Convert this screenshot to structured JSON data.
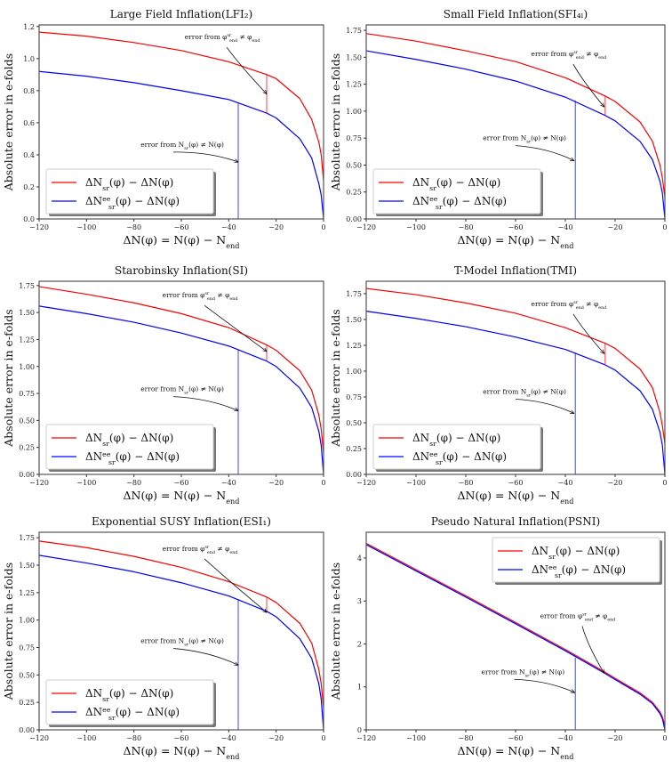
{
  "colors": {
    "red": "#ff0000",
    "blue": "#0000ff",
    "axis": "#555555"
  },
  "chart_data": [
    {
      "type": "line",
      "title": "Large Field Inflation(LFI₂)",
      "xlabel": "ΔN(φ) = N(φ) − N{_end}",
      "ylabel": "Absolute error in e-folds",
      "xlim": [
        -120,
        0
      ],
      "ylim": [
        0,
        1.21
      ],
      "xticks": [
        -120,
        -100,
        -80,
        -60,
        -40,
        -20,
        0
      ],
      "yticks": [
        0.0,
        0.2,
        0.4,
        0.6,
        0.8,
        1.0,
        1.2
      ],
      "ytick_decimals": 1,
      "grid": false,
      "legend_placement": "lower-left",
      "x": [
        -120,
        -100,
        -80,
        -60,
        -40,
        -24,
        -20,
        -10,
        -5,
        -2,
        -1,
        0
      ],
      "series": [
        {
          "name": "ΔN{_sr}(φ) − ΔN(φ)",
          "color": "#ff0000",
          "values": [
            1.165,
            1.14,
            1.1,
            1.05,
            0.98,
            0.9,
            0.875,
            0.75,
            0.62,
            0.48,
            0.4,
            0.24
          ]
        },
        {
          "name": "ΔN{^ee}{_sr}(φ) − ΔN(φ)",
          "color": "#0000ff",
          "values": [
            0.92,
            0.89,
            0.85,
            0.8,
            0.745,
            0.66,
            0.63,
            0.5,
            0.38,
            0.22,
            0.15,
            0.0
          ]
        }
      ],
      "vlines": [
        {
          "x": -24,
          "y0": 0.655,
          "y1": 0.9,
          "color": "#ff0000"
        },
        {
          "x": -36,
          "y0": 0,
          "y1": 0.72,
          "color": "#0000ff"
        }
      ],
      "annotations": [
        {
          "text": "error from φ{^sr}{_end} ≠ φ{_end}",
          "xytext": [
            -42.7,
            1.12
          ],
          "xy": [
            -24,
            0.78
          ]
        },
        {
          "text": "error from N{_sr}(φ) ≠ N(φ)",
          "xytext": [
            -59.6,
            0.45
          ],
          "xy": [
            -36,
            0.355
          ]
        }
      ]
    },
    {
      "type": "line",
      "title": "Small Field Inflation(SFI₄ₗ)",
      "xlabel": "ΔN(φ) = N(φ) − N{_end}",
      "ylabel": "Absolute error in e-folds",
      "xlim": [
        -120,
        0
      ],
      "ylim": [
        0,
        1.8
      ],
      "xticks": [
        -120,
        -100,
        -80,
        -60,
        -40,
        -20,
        0
      ],
      "yticks": [
        0.0,
        0.25,
        0.5,
        0.75,
        1.0,
        1.25,
        1.5,
        1.75
      ],
      "ytick_decimals": 2,
      "grid": false,
      "legend_placement": "lower-left",
      "x": [
        -120,
        -100,
        -80,
        -60,
        -40,
        -24,
        -20,
        -10,
        -5,
        -2,
        -1,
        0
      ],
      "series": [
        {
          "name": "ΔN{_sr}(φ) − ΔN(φ)",
          "color": "#ff0000",
          "values": [
            1.72,
            1.65,
            1.56,
            1.46,
            1.31,
            1.14,
            1.09,
            0.9,
            0.72,
            0.5,
            0.38,
            0.2
          ]
        },
        {
          "name": "ΔN{^ee}{_sr}(φ) − ΔN(φ)",
          "color": "#0000ff",
          "values": [
            1.56,
            1.48,
            1.39,
            1.28,
            1.13,
            0.96,
            0.91,
            0.72,
            0.55,
            0.35,
            0.24,
            0.0
          ]
        }
      ],
      "vlines": [
        {
          "x": -24,
          "y0": 0.96,
          "y1": 1.14,
          "color": "#ff0000"
        },
        {
          "x": -36,
          "y0": 0,
          "y1": 1.1,
          "color": "#0000ff"
        }
      ],
      "annotations": [
        {
          "text": "error from φ{^sr}{_end} ≠ φ{_end}",
          "xytext": [
            -38.6,
            1.51
          ],
          "xy": [
            -24.4,
            1.04
          ]
        },
        {
          "text": "error from N{_sr}(φ) ≠ N(φ)",
          "xytext": [
            -56.4,
            0.73
          ],
          "xy": [
            -36.5,
            0.54
          ]
        }
      ]
    },
    {
      "type": "line",
      "title": "Starobinsky Inflation(SI)",
      "xlabel": "ΔN(φ) = N(φ) − N{_end}",
      "ylabel": "Absolute error in e-folds",
      "xlim": [
        -120,
        0
      ],
      "ylim": [
        0,
        1.79
      ],
      "xticks": [
        -120,
        -100,
        -80,
        -60,
        -40,
        -20,
        0
      ],
      "yticks": [
        0.0,
        0.25,
        0.5,
        0.75,
        1.0,
        1.25,
        1.5,
        1.75
      ],
      "ytick_decimals": 2,
      "grid": false,
      "legend_placement": "lower-left",
      "x": [
        -120,
        -100,
        -80,
        -60,
        -40,
        -24,
        -20,
        -10,
        -5,
        -2,
        -1,
        0
      ],
      "series": [
        {
          "name": "ΔN{_sr}(φ) − ΔN(φ)",
          "color": "#ff0000",
          "values": [
            1.74,
            1.67,
            1.59,
            1.49,
            1.36,
            1.2,
            1.15,
            0.96,
            0.78,
            0.55,
            0.42,
            0.2
          ]
        },
        {
          "name": "ΔN{^ee}{_sr}(φ) − ΔN(φ)",
          "color": "#0000ff",
          "values": [
            1.56,
            1.49,
            1.41,
            1.31,
            1.19,
            1.05,
            1.0,
            0.8,
            0.62,
            0.4,
            0.27,
            0.0
          ]
        }
      ],
      "vlines": [
        {
          "x": -24,
          "y0": 1.05,
          "y1": 1.2,
          "color": "#ff0000"
        },
        {
          "x": -36,
          "y0": 0,
          "y1": 1.16,
          "color": "#0000ff"
        }
      ],
      "annotations": [
        {
          "text": "error from φ{^sr}{_end} ≠ φ{_end}",
          "xytext": [
            -52.1,
            1.64
          ],
          "xy": [
            -24,
            1.14
          ]
        },
        {
          "text": "error from N{_sr}(φ) ≠ N(φ)",
          "xytext": [
            -59.6,
            0.77
          ],
          "xy": [
            -36,
            0.59
          ]
        }
      ]
    },
    {
      "type": "line",
      "title": "T-Model Inflation(TMI)",
      "xlabel": "ΔN(φ) = N(φ) − N{_end}",
      "ylabel": "Absolute error in e-folds",
      "xlim": [
        -120,
        0
      ],
      "ylim": [
        0,
        1.87
      ],
      "xticks": [
        -120,
        -100,
        -80,
        -60,
        -40,
        -20,
        0
      ],
      "yticks": [
        0.0,
        0.25,
        0.5,
        0.75,
        1.0,
        1.25,
        1.5,
        1.75
      ],
      "ytick_decimals": 2,
      "grid": false,
      "legend_placement": "lower-left",
      "x": [
        -120,
        -100,
        -80,
        -60,
        -40,
        -24,
        -20,
        -10,
        -5,
        -2,
        -1,
        0
      ],
      "series": [
        {
          "name": "ΔN{_sr}(φ) − ΔN(φ)",
          "color": "#ff0000",
          "values": [
            1.8,
            1.74,
            1.66,
            1.56,
            1.42,
            1.27,
            1.22,
            1.02,
            0.84,
            0.6,
            0.47,
            0.3
          ]
        },
        {
          "name": "ΔN{^ee}{_sr}(φ) − ΔN(φ)",
          "color": "#0000ff",
          "values": [
            1.58,
            1.51,
            1.43,
            1.33,
            1.21,
            1.06,
            1.01,
            0.81,
            0.63,
            0.41,
            0.28,
            0.0
          ]
        }
      ],
      "vlines": [
        {
          "x": -24,
          "y0": 1.06,
          "y1": 1.27,
          "color": "#ff0000"
        },
        {
          "x": -36,
          "y0": 0,
          "y1": 1.18,
          "color": "#0000ff"
        }
      ],
      "annotations": [
        {
          "text": "error from φ{^sr}{_end} ≠ φ{_end}",
          "xytext": [
            -38.6,
            1.63
          ],
          "xy": [
            -24.4,
            1.17
          ]
        },
        {
          "text": "error from N{_sr}(φ) ≠ N(φ)",
          "xytext": [
            -56.4,
            0.78
          ],
          "xy": [
            -36.5,
            0.59
          ]
        }
      ]
    },
    {
      "type": "line",
      "title": "Exponential SUSY Inflation(ESI₁)",
      "xlabel": "ΔN(φ) = N(φ) − N{_end}",
      "ylabel": "Absolute error in e-folds",
      "xlim": [
        -120,
        0
      ],
      "ylim": [
        0,
        1.8
      ],
      "xticks": [
        -120,
        -100,
        -80,
        -60,
        -40,
        -20,
        0
      ],
      "yticks": [
        0.0,
        0.25,
        0.5,
        0.75,
        1.0,
        1.25,
        1.5,
        1.75
      ],
      "ytick_decimals": 2,
      "grid": false,
      "legend_placement": "lower-left",
      "x": [
        -120,
        -100,
        -80,
        -60,
        -40,
        -24,
        -20,
        -10,
        -5,
        -2,
        -1,
        0
      ],
      "series": [
        {
          "name": "ΔN{_sr}(φ) − ΔN(φ)",
          "color": "#ff0000",
          "values": [
            1.72,
            1.66,
            1.58,
            1.48,
            1.35,
            1.21,
            1.16,
            0.97,
            0.79,
            0.55,
            0.42,
            0.2
          ]
        },
        {
          "name": "ΔN{^ee}{_sr}(φ) − ΔN(φ)",
          "color": "#0000ff",
          "values": [
            1.59,
            1.52,
            1.44,
            1.34,
            1.22,
            1.08,
            1.03,
            0.83,
            0.65,
            0.42,
            0.28,
            0.0
          ]
        }
      ],
      "vlines": [
        {
          "x": -24,
          "y0": 1.08,
          "y1": 1.21,
          "color": "#ff0000"
        },
        {
          "x": -36,
          "y0": 0,
          "y1": 1.19,
          "color": "#0000ff"
        }
      ],
      "annotations": [
        {
          "text": "error from φ{^sr}{_end} ≠ φ{_end}",
          "xytext": [
            -52.1,
            1.63
          ],
          "xy": [
            -24,
            1.07
          ]
        },
        {
          "text": "error from N{_sr}(φ) ≠ N(φ)",
          "xytext": [
            -59.6,
            0.79
          ],
          "xy": [
            -36,
            0.59
          ]
        }
      ]
    },
    {
      "type": "line",
      "title": "Pseudo Natural Inflation(PSNI)",
      "xlabel": "ΔN(φ) = N(φ) − N{_end}",
      "ylabel": "Absolute error in e-folds",
      "xlim": [
        -120,
        0
      ],
      "ylim": [
        0,
        4.6
      ],
      "xticks": [
        -120,
        -100,
        -80,
        -60,
        -40,
        -20,
        0
      ],
      "yticks": [
        0,
        1,
        2,
        3,
        4
      ],
      "ytick_decimals": 0,
      "grid": false,
      "legend_placement": "upper-right",
      "x": [
        -120,
        -100,
        -80,
        -60,
        -40,
        -24,
        -20,
        -10,
        -5,
        -2,
        -1,
        0
      ],
      "series": [
        {
          "name": "ΔN{_sr}(φ) − ΔN(φ)",
          "color": "#ff0000",
          "values": [
            4.34,
            3.73,
            3.12,
            2.5,
            1.87,
            1.34,
            1.2,
            0.86,
            0.64,
            0.42,
            0.3,
            0.1
          ]
        },
        {
          "name": "ΔN{^ee}{_sr}(φ) − ΔN(φ)",
          "color": "#0000ff",
          "values": [
            4.31,
            3.7,
            3.09,
            2.47,
            1.84,
            1.31,
            1.17,
            0.83,
            0.61,
            0.38,
            0.26,
            0.0
          ]
        }
      ],
      "vlines": [
        {
          "x": -36,
          "y0": 0,
          "y1": 1.68,
          "color": "#0000ff"
        }
      ],
      "annotations": [
        {
          "text": "error from φ{^sr}{_end} ≠ φ{_end}",
          "xytext": [
            -35,
            2.6
          ],
          "xy": [
            -24.4,
            1.32
          ]
        },
        {
          "text": "error from N{_sr}(φ) ≠ N(φ)",
          "xytext": [
            -57,
            1.3
          ],
          "xy": [
            -36.3,
            0.87
          ]
        }
      ]
    }
  ]
}
